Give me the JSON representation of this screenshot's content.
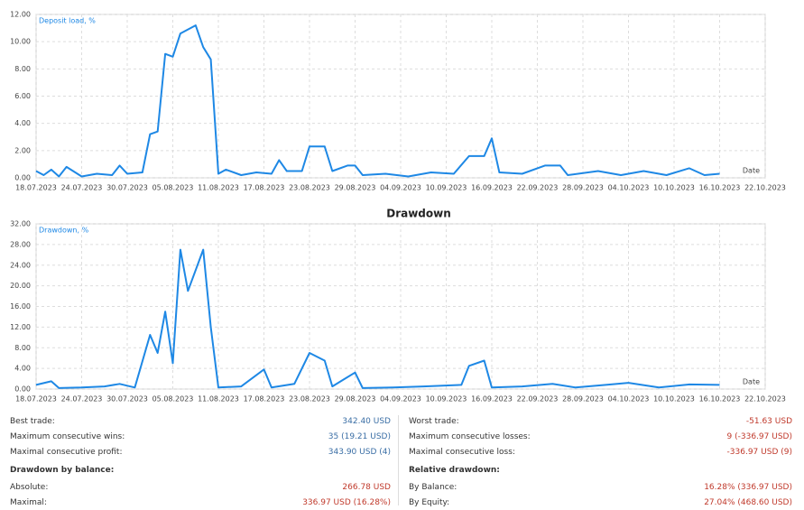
{
  "chart_data": [
    {
      "type": "line",
      "x_label": "Date",
      "x": [
        "2023-07-18",
        "2023-07-19",
        "2023-07-20",
        "2023-07-21",
        "2023-07-22",
        "2023-07-24",
        "2023-07-26",
        "2023-07-28",
        "2023-07-29",
        "2023-07-30",
        "2023-08-01",
        "2023-08-02",
        "2023-08-03",
        "2023-08-04",
        "2023-08-05",
        "2023-08-06",
        "2023-08-08",
        "2023-08-09",
        "2023-08-10",
        "2023-08-11",
        "2023-08-12",
        "2023-08-14",
        "2023-08-16",
        "2023-08-18",
        "2023-08-19",
        "2023-08-20",
        "2023-08-22",
        "2023-08-23",
        "2023-08-25",
        "2023-08-26",
        "2023-08-28",
        "2023-08-29",
        "2023-08-30",
        "2023-09-02",
        "2023-09-05",
        "2023-09-08",
        "2023-09-11",
        "2023-09-13",
        "2023-09-15",
        "2023-09-16",
        "2023-09-17",
        "2023-09-20",
        "2023-09-23",
        "2023-09-25",
        "2023-09-26",
        "2023-09-30",
        "2023-10-03",
        "2023-10-06",
        "2023-10-09",
        "2023-10-12",
        "2023-10-14",
        "2023-10-16"
      ],
      "series": [
        {
          "name": "Deposit load, %",
          "color": "#1e88e5",
          "values": [
            0.5,
            0.2,
            0.6,
            0.1,
            0.8,
            0.1,
            0.3,
            0.2,
            0.9,
            0.3,
            0.4,
            3.2,
            3.4,
            9.1,
            8.9,
            10.6,
            11.2,
            9.6,
            8.7,
            0.3,
            0.6,
            0.2,
            0.4,
            0.3,
            1.3,
            0.5,
            0.5,
            2.3,
            2.3,
            0.5,
            0.9,
            0.9,
            0.2,
            0.3,
            0.1,
            0.4,
            0.3,
            1.6,
            1.6,
            2.9,
            0.4,
            0.3,
            0.9,
            0.9,
            0.2,
            0.5,
            0.2,
            0.5,
            0.2,
            0.7,
            0.2,
            0.3
          ]
        }
      ],
      "xlim": [
        "2023-07-18",
        "2023-10-22"
      ],
      "xticks": [
        {
          "value": "2023-07-18",
          "label": "18.07.2023"
        },
        {
          "value": "2023-07-24",
          "label": "24.07.2023"
        },
        {
          "value": "2023-07-30",
          "label": "30.07.2023"
        },
        {
          "value": "2023-08-05",
          "label": "05.08.2023"
        },
        {
          "value": "2023-08-11",
          "label": "11.08.2023"
        },
        {
          "value": "2023-08-17",
          "label": "17.08.2023"
        },
        {
          "value": "2023-08-23",
          "label": "23.08.2023"
        },
        {
          "value": "2023-08-29",
          "label": "29.08.2023"
        },
        {
          "value": "2023-09-04",
          "label": "04.09.2023"
        },
        {
          "value": "2023-09-10",
          "label": "10.09.2023"
        },
        {
          "value": "2023-09-16",
          "label": "16.09.2023"
        },
        {
          "value": "2023-09-22",
          "label": "22.09.2023"
        },
        {
          "value": "2023-09-28",
          "label": "28.09.2023"
        },
        {
          "value": "2023-10-04",
          "label": "04.10.2023"
        },
        {
          "value": "2023-10-10",
          "label": "10.10.2023"
        },
        {
          "value": "2023-10-16",
          "label": "16.10.2023"
        },
        {
          "value": "2023-10-22",
          "label": "22.10.2023"
        }
      ],
      "ylim": [
        0,
        12
      ],
      "yticks": [
        {
          "value": 0,
          "label": "0.00"
        },
        {
          "value": 2,
          "label": "2.00"
        },
        {
          "value": 4,
          "label": "4.00"
        },
        {
          "value": 6,
          "label": "6.00"
        },
        {
          "value": 8,
          "label": "8.00"
        },
        {
          "value": 10,
          "label": "10.00"
        },
        {
          "value": 12,
          "label": "12.00"
        }
      ],
      "grid": true
    },
    {
      "type": "line",
      "title": "Drawdown",
      "x_label": "Date",
      "x": [
        "2023-07-18",
        "2023-07-20",
        "2023-07-21",
        "2023-07-24",
        "2023-07-27",
        "2023-07-29",
        "2023-07-31",
        "2023-08-02",
        "2023-08-03",
        "2023-08-04",
        "2023-08-05",
        "2023-08-06",
        "2023-08-07",
        "2023-08-09",
        "2023-08-10",
        "2023-08-11",
        "2023-08-14",
        "2023-08-17",
        "2023-08-18",
        "2023-08-21",
        "2023-08-23",
        "2023-08-25",
        "2023-08-26",
        "2023-08-29",
        "2023-08-30",
        "2023-09-03",
        "2023-09-07",
        "2023-09-12",
        "2023-09-13",
        "2023-09-15",
        "2023-09-16",
        "2023-09-20",
        "2023-09-24",
        "2023-09-27",
        "2023-10-01",
        "2023-10-04",
        "2023-10-08",
        "2023-10-12",
        "2023-10-16"
      ],
      "series": [
        {
          "name": "Drawdown, %",
          "color": "#1e88e5",
          "values": [
            0.8,
            1.5,
            0.2,
            0.3,
            0.5,
            1.0,
            0.3,
            10.5,
            7.0,
            15.0,
            5.0,
            27.0,
            19.0,
            27.0,
            12.0,
            0.3,
            0.5,
            3.8,
            0.3,
            1.0,
            7.0,
            5.5,
            0.5,
            3.2,
            0.2,
            0.3,
            0.5,
            0.8,
            4.5,
            5.5,
            0.3,
            0.5,
            1.0,
            0.3,
            0.8,
            1.2,
            0.3,
            0.9,
            0.8
          ]
        }
      ],
      "xlim": [
        "2023-07-18",
        "2023-10-22"
      ],
      "xticks": [
        {
          "value": "2023-07-18",
          "label": "18.07.2023"
        },
        {
          "value": "2023-07-24",
          "label": "24.07.2023"
        },
        {
          "value": "2023-07-30",
          "label": "30.07.2023"
        },
        {
          "value": "2023-08-05",
          "label": "05.08.2023"
        },
        {
          "value": "2023-08-11",
          "label": "11.08.2023"
        },
        {
          "value": "2023-08-17",
          "label": "17.08.2023"
        },
        {
          "value": "2023-08-23",
          "label": "23.08.2023"
        },
        {
          "value": "2023-08-29",
          "label": "29.08.2023"
        },
        {
          "value": "2023-09-04",
          "label": "04.09.2023"
        },
        {
          "value": "2023-09-10",
          "label": "10.09.2023"
        },
        {
          "value": "2023-09-16",
          "label": "16.09.2023"
        },
        {
          "value": "2023-09-22",
          "label": "22.09.2023"
        },
        {
          "value": "2023-09-28",
          "label": "28.09.2023"
        },
        {
          "value": "2023-10-04",
          "label": "04.10.2023"
        },
        {
          "value": "2023-10-10",
          "label": "10.10.2023"
        },
        {
          "value": "2023-10-16",
          "label": "16.10.2023"
        },
        {
          "value": "2023-10-22",
          "label": "22.10.2023"
        }
      ],
      "ylim": [
        0,
        32
      ],
      "yticks": [
        {
          "value": 0,
          "label": "0.00"
        },
        {
          "value": 4,
          "label": "4.00"
        },
        {
          "value": 8,
          "label": "8.00"
        },
        {
          "value": 12,
          "label": "12.00"
        },
        {
          "value": 16,
          "label": "16.00"
        },
        {
          "value": 20,
          "label": "20.00"
        },
        {
          "value": 24,
          "label": "24.00"
        },
        {
          "value": 28,
          "label": "28.00"
        },
        {
          "value": 32,
          "label": "32.00"
        }
      ],
      "grid": true
    }
  ],
  "stats": {
    "columns": [
      {
        "rows": [
          {
            "label": "Best trade:",
            "value": "342.40 USD",
            "color": "#3a6ea5"
          },
          {
            "label": "Maximum consecutive wins:",
            "value": "35 (19.21 USD)",
            "color": "#3a6ea5"
          },
          {
            "label": "Maximal consecutive profit:",
            "value": "343.90 USD (4)",
            "color": "#3a6ea5"
          }
        ],
        "section": "Drawdown by balance:",
        "section_rows": [
          {
            "label": "Absolute:",
            "value": "266.78 USD",
            "color": "#c0392b"
          },
          {
            "label": "Maximal:",
            "value": "336.97 USD (16.28%)",
            "color": "#c0392b"
          }
        ]
      },
      {
        "rows": [
          {
            "label": "Worst trade:",
            "value": "-51.63 USD",
            "color": "#c0392b"
          },
          {
            "label": "Maximum consecutive losses:",
            "value": "9 (-336.97 USD)",
            "color": "#c0392b"
          },
          {
            "label": "Maximal consecutive loss:",
            "value": "-336.97 USD (9)",
            "color": "#c0392b"
          }
        ],
        "section": "Relative drawdown:",
        "section_rows": [
          {
            "label": "By Balance:",
            "value": "16.28% (336.97 USD)",
            "color": "#c0392b"
          },
          {
            "label": "By Equity:",
            "value": "27.04% (468.60 USD)",
            "color": "#c0392b"
          }
        ]
      }
    ]
  }
}
